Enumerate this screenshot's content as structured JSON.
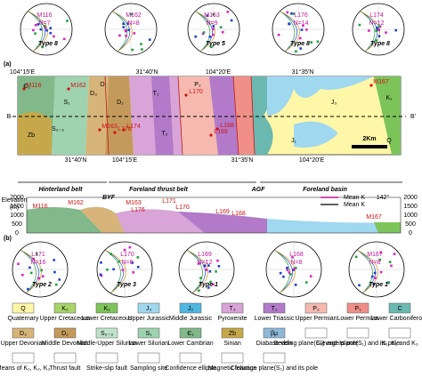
{
  "panel_labels": [
    "(a)",
    "(b)"
  ],
  "top_stereonets": [
    {
      "site": "M116",
      "n": "N=7",
      "type": "Type 8"
    },
    {
      "site": "M162",
      "n": "N=8"
    },
    {
      "site": "M163",
      "n": "N=9",
      "type": "Type 5"
    },
    {
      "site": "L176",
      "n": "N=14",
      "type": "Type 8"
    },
    {
      "site": "L174",
      "n": "N=12",
      "type": "Type 8"
    }
  ],
  "map": {
    "coords_top": [
      "104°15'E",
      "31°40'N",
      "104°20'E",
      "31°35'N"
    ],
    "coords_bottom": [
      "31°40'N",
      "104°15'E",
      "31°35'N",
      "104°20'E"
    ],
    "section_ends": [
      "B",
      "B'"
    ],
    "scale": "2Km",
    "units": [
      "Є₁",
      "Zb",
      "S₁",
      "O",
      "D₃",
      "D₂",
      "T₁",
      "T₂",
      "P₂",
      "J₃",
      "J₁",
      "K₁",
      "Q",
      "S₂₋₃"
    ],
    "sites": [
      "M116",
      "M162",
      "M163",
      "L176",
      "L174",
      "L170",
      "L169",
      "L168",
      "M167"
    ]
  },
  "belts": [
    "Hinterland belt",
    "Foreland thrust belt",
    "Foreland basin"
  ],
  "faults": [
    "BYF",
    "AGF"
  ],
  "section": {
    "axis_title": "Elevation",
    "axis_unit": "(m)",
    "ticks": [
      "0",
      "500",
      "1000",
      "1500",
      "2000"
    ],
    "legend": [
      "Mean K",
      "Mean K"
    ],
    "azimuth": "142°",
    "sites": [
      "M116",
      "M162",
      "M163",
      "L176",
      "L171",
      "L170",
      "L169",
      "L168",
      "M167"
    ]
  },
  "bottom_stereonets": [
    {
      "site": "L171",
      "n": "N=16",
      "type": "Type 2"
    },
    {
      "site": "L170",
      "n": "N=6",
      "type": "Type 3"
    },
    {
      "site": "L169",
      "n": "N=12",
      "type": "Type 1"
    },
    {
      "site": "L168",
      "n": "N=8"
    },
    {
      "site": "M167",
      "n": "N=8",
      "type": "Type 1"
    }
  ],
  "legend": [
    {
      "code": "Q",
      "label": "Quaternary",
      "color": "#fff7a8"
    },
    {
      "code": "K₂",
      "label": "Upper Cretaceous",
      "color": "#a8d46a"
    },
    {
      "code": "K₁",
      "label": "Lower Cretaceous",
      "color": "#7cc45a"
    },
    {
      "code": "J₃",
      "label": "Upper Jurassic",
      "color": "#9fd8ef"
    },
    {
      "code": "J₂",
      "label": "Middle Jurassic",
      "color": "#4fb7e0"
    },
    {
      "code": "T₃",
      "label": "Pyroxenite",
      "color": "#d9a4d8"
    },
    {
      "code": "T₁",
      "label": "Lower Triassic",
      "color": "#b27ac8"
    },
    {
      "code": "P₂",
      "label": "Upper Permian",
      "color": "#f6b9b0"
    },
    {
      "code": "P₁",
      "label": "Lower Permian",
      "color": "#ef8f88"
    },
    {
      "code": "C",
      "label": "Lower Carboniferous",
      "color": "#6bb8b0"
    },
    {
      "code": "D₃",
      "label": "Upper Devonian",
      "color": "#d7b57a"
    },
    {
      "code": "D₂",
      "label": "Middle Devonian",
      "color": "#c49a5c"
    },
    {
      "code": "S₂₋₃",
      "label": "Middle-Upper Silurian",
      "color": "#bfe3c8"
    },
    {
      "code": "S₁",
      "label": "Lower Silurian",
      "color": "#9fd3b0"
    },
    {
      "code": "Є₁",
      "label": "Lower Cambrian",
      "color": "#82b88a"
    },
    {
      "code": "Zb",
      "label": "Sinian",
      "color": "#c6a84a"
    },
    {
      "code": "βμ",
      "label": "Diabase vein",
      "color": "#8fb8d8"
    },
    {
      "code": "",
      "label": "Bedding plane(S₀) and its pole",
      "color": "#ffffff"
    },
    {
      "code": "",
      "label": "Clevage plane(S₁) and its pole",
      "color": "#ffffff"
    },
    {
      "code": "",
      "label": "K₁, K₂ and K₃",
      "color": "#ffffff"
    },
    {
      "code": "",
      "label": "Means of K₁, K₂, K₃",
      "color": "#ffffff"
    },
    {
      "code": "",
      "label": "Thrust fault",
      "color": "#ffffff"
    },
    {
      "code": "",
      "label": "Strike-slip fault",
      "color": "#ffffff"
    },
    {
      "code": "",
      "label": "Sampling site",
      "color": "#ffffff"
    },
    {
      "code": "",
      "label": "Confidence ellipse",
      "color": "#ffffff"
    },
    {
      "code": "",
      "label": "Magnetic foliation",
      "color": "#ffffff"
    },
    {
      "code": "",
      "label": "Cleavage plane(S₁) and its pole",
      "color": "#ffffff"
    }
  ]
}
